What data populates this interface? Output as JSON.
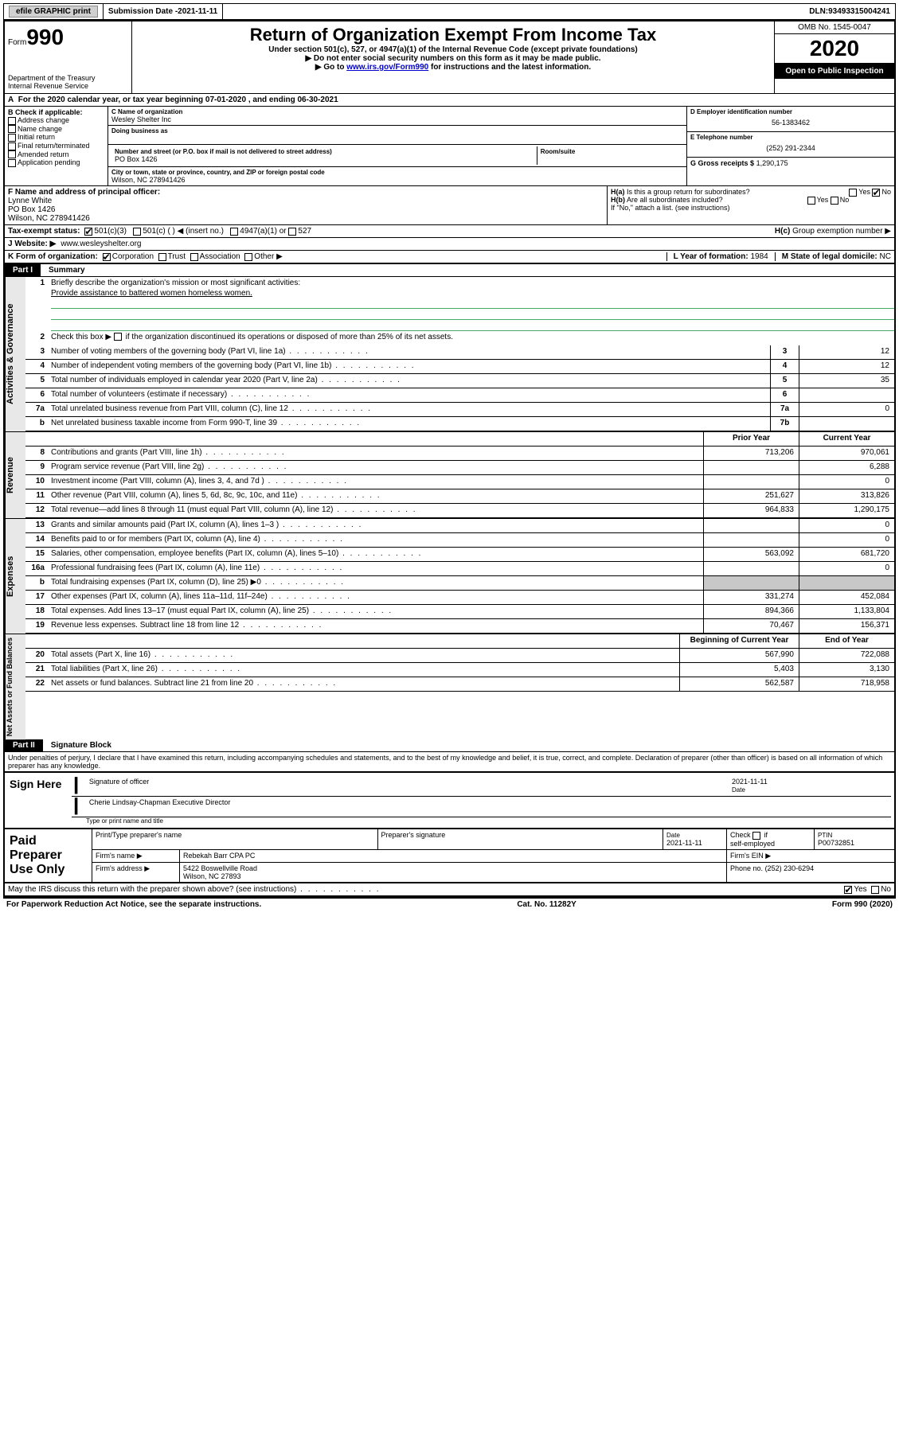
{
  "topbar": {
    "efile": "efile GRAPHIC print",
    "subdate_lbl": "Submission Date - ",
    "subdate": "2021-11-11",
    "dln_lbl": "DLN: ",
    "dln": "93493315004241"
  },
  "header": {
    "form_word": "Form",
    "form_num": "990",
    "dept1": "Department of the Treasury",
    "dept2": "Internal Revenue Service",
    "title": "Return of Organization Exempt From Income Tax",
    "sub1": "Under section 501(c), 527, or 4947(a)(1) of the Internal Revenue Code (except private foundations)",
    "sub2": "Do not enter social security numbers on this form as it may be made public.",
    "sub3a": "Go to ",
    "sub3link": "www.irs.gov/Form990",
    "sub3b": " for instructions and the latest information.",
    "omb": "OMB No. 1545-0047",
    "year": "2020",
    "open": "Open to Public Inspection"
  },
  "rowA": {
    "text": "For the 2020 calendar year, or tax year beginning 07-01-2020   , and ending 06-30-2021",
    "prefix": "A"
  },
  "boxB": {
    "hdr": "B Check if applicable:",
    "items": [
      "Address change",
      "Name change",
      "Initial return",
      "Final return/terminated",
      "Amended return",
      "Application pending"
    ]
  },
  "boxC": {
    "name_lbl": "C Name of organization",
    "name": "Wesley Shelter Inc",
    "dba_lbl": "Doing business as",
    "addr_lbl": "Number and street (or P.O. box if mail is not delivered to street address)",
    "room_lbl": "Room/suite",
    "addr": "PO Box 1426",
    "city_lbl": "City or town, state or province, country, and ZIP or foreign postal code",
    "city": "Wilson, NC  278941426"
  },
  "boxD": {
    "lbl": "D Employer identification number",
    "val": "56-1383462"
  },
  "boxE": {
    "lbl": "E Telephone number",
    "val": "(252) 291-2344"
  },
  "boxG": {
    "lbl": "G Gross receipts $",
    "val": "1,290,175"
  },
  "boxF": {
    "lbl": "F Name and address of principal officer:",
    "name": "Lynne White",
    "addr1": "PO Box 1426",
    "addr2": "Wilson, NC  278941426"
  },
  "boxH": {
    "a": "Is this a group return for subordinates?",
    "b": "Are all subordinates included?",
    "note": "If \"No,\" attach a list. (see instructions)",
    "c": "Group exemption number ▶",
    "ha": "H(a)",
    "hb": "H(b)",
    "hc": "H(c)",
    "yes": "Yes",
    "no": "No"
  },
  "boxI": {
    "lbl": "Tax-exempt status:",
    "o1": "501(c)(3)",
    "o2": "501(c) (  ) ◀ (insert no.)",
    "o3": "4947(a)(1) or",
    "o4": "527"
  },
  "boxJ": {
    "lbl": "J  Website: ▶",
    "val": "www.wesleyshelter.org"
  },
  "boxK": {
    "lbl": "K Form of organization:",
    "o1": "Corporation",
    "o2": "Trust",
    "o3": "Association",
    "o4": "Other ▶"
  },
  "boxL": {
    "lbl": "L Year of formation:",
    "val": "1984"
  },
  "boxM": {
    "lbl": "M State of legal domicile:",
    "val": "NC"
  },
  "part1": {
    "num": "Part I",
    "title": "Summary"
  },
  "sections": {
    "gov": "Activities & Governance",
    "rev": "Revenue",
    "exp": "Expenses",
    "net": "Net Assets or Fund Balances"
  },
  "gov": {
    "q1a": "Briefly describe the organization's mission or most significant activities:",
    "q1b": "Provide assistance to battered women homeless women.",
    "q2": "Check this box ▶       if the organization discontinued its operations or disposed of more than 25% of its net assets.",
    "q3": "Number of voting members of the governing body (Part VI, line 1a)",
    "q4": "Number of independent voting members of the governing body (Part VI, line 1b)",
    "q5": "Total number of individuals employed in calendar year 2020 (Part V, line 2a)",
    "q6": "Total number of volunteers (estimate if necessary)",
    "q7a": "Total unrelated business revenue from Part VIII, column (C), line 12",
    "q7b": "Net unrelated business taxable income from Form 990-T, line 39",
    "v3": "12",
    "v4": "12",
    "v5": "35",
    "v6": "",
    "v7a": "0",
    "v7b": ""
  },
  "cols": {
    "prior": "Prior Year",
    "curr": "Current Year",
    "boy": "Beginning of Current Year",
    "eoy": "End of Year"
  },
  "rev": [
    {
      "n": "8",
      "t": "Contributions and grants (Part VIII, line 1h)",
      "p": "713,206",
      "c": "970,061"
    },
    {
      "n": "9",
      "t": "Program service revenue (Part VIII, line 2g)",
      "p": "",
      "c": "6,288"
    },
    {
      "n": "10",
      "t": "Investment income (Part VIII, column (A), lines 3, 4, and 7d )",
      "p": "",
      "c": "0"
    },
    {
      "n": "11",
      "t": "Other revenue (Part VIII, column (A), lines 5, 6d, 8c, 9c, 10c, and 11e)",
      "p": "251,627",
      "c": "313,826"
    },
    {
      "n": "12",
      "t": "Total revenue—add lines 8 through 11 (must equal Part VIII, column (A), line 12)",
      "p": "964,833",
      "c": "1,290,175"
    }
  ],
  "exp": [
    {
      "n": "13",
      "t": "Grants and similar amounts paid (Part IX, column (A), lines 1–3 )",
      "p": "",
      "c": "0"
    },
    {
      "n": "14",
      "t": "Benefits paid to or for members (Part IX, column (A), line 4)",
      "p": "",
      "c": "0"
    },
    {
      "n": "15",
      "t": "Salaries, other compensation, employee benefits (Part IX, column (A), lines 5–10)",
      "p": "563,092",
      "c": "681,720"
    },
    {
      "n": "16a",
      "t": "Professional fundraising fees (Part IX, column (A), line 11e)",
      "p": "",
      "c": "0"
    },
    {
      "n": "b",
      "t": "Total fundraising expenses (Part IX, column (D), line 25) ▶0",
      "p": "SHADE",
      "c": "SHADE"
    },
    {
      "n": "17",
      "t": "Other expenses (Part IX, column (A), lines 11a–11d, 11f–24e)",
      "p": "331,274",
      "c": "452,084"
    },
    {
      "n": "18",
      "t": "Total expenses. Add lines 13–17 (must equal Part IX, column (A), line 25)",
      "p": "894,366",
      "c": "1,133,804"
    },
    {
      "n": "19",
      "t": "Revenue less expenses. Subtract line 18 from line 12",
      "p": "70,467",
      "c": "156,371"
    }
  ],
  "net": [
    {
      "n": "20",
      "t": "Total assets (Part X, line 16)",
      "p": "567,990",
      "c": "722,088"
    },
    {
      "n": "21",
      "t": "Total liabilities (Part X, line 26)",
      "p": "5,403",
      "c": "3,130"
    },
    {
      "n": "22",
      "t": "Net assets or fund balances. Subtract line 21 from line 20",
      "p": "562,587",
      "c": "718,958"
    }
  ],
  "part2": {
    "num": "Part II",
    "title": "Signature Block"
  },
  "perjury": "Under penalties of perjury, I declare that I have examined this return, including accompanying schedules and statements, and to the best of my knowledge and belief, it is true, correct, and complete. Declaration of preparer (other than officer) is based on all information of which preparer has any knowledge.",
  "sign": {
    "here": "Sign Here",
    "sig_lbl": "Signature of officer",
    "date_lbl": "Date",
    "date": "2021-11-11",
    "name": "Cherie Lindsay-Chapman  Executive Director",
    "name_lbl": "Type or print name and title"
  },
  "prep": {
    "title": "Paid Preparer Use Only",
    "h1": "Print/Type preparer's name",
    "h2": "Preparer's signature",
    "h3": "Date",
    "h4": "Check       if self-employed",
    "h5": "PTIN",
    "date": "2021-11-11",
    "ptin": "P00732851",
    "firm_lbl": "Firm's name   ▶",
    "firm": "Rebekah Barr CPA PC",
    "ein_lbl": "Firm's EIN ▶",
    "addr_lbl": "Firm's address ▶",
    "addr1": "5422 Boswellville Road",
    "addr2": "Wilson, NC  27893",
    "phone_lbl": "Phone no.",
    "phone": "(252) 230-6294"
  },
  "discuss": "May the IRS discuss this return with the preparer shown above? (see instructions)",
  "footer": {
    "left": "For Paperwork Reduction Act Notice, see the separate instructions.",
    "mid": "Cat. No. 11282Y",
    "right": "Form 990 (2020)"
  },
  "yes": "Yes",
  "no": "No"
}
